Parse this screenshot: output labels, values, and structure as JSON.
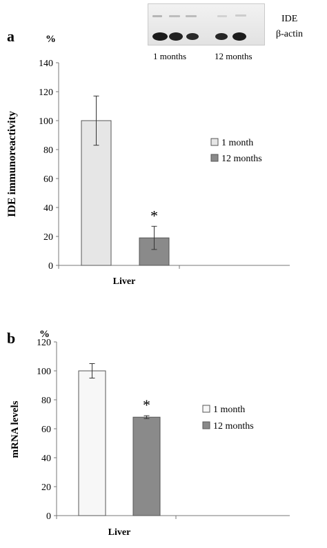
{
  "panel_a": {
    "letter": "a",
    "unit": "%"
  },
  "panel_b": {
    "letter": "b",
    "unit": "%"
  },
  "blot": {
    "labels": [
      "IDE",
      "β-actin"
    ],
    "lane_groups": [
      "1 months",
      "12 months"
    ]
  },
  "colors": {
    "one_month_a": "#e6e6e6",
    "twelve_months": "#8a8a8a",
    "one_month_b": "#f7f7f7"
  },
  "chart_data": [
    {
      "type": "bar",
      "title": "",
      "ylabel": "IDE immunoreactivity",
      "xlabel": "",
      "categories": [
        "Liver"
      ],
      "ylim": [
        0,
        140
      ],
      "yticks": [
        0,
        20,
        40,
        60,
        80,
        100,
        120,
        140
      ],
      "grid": false,
      "legend": "right",
      "series": [
        {
          "name": "1 month",
          "values": [
            100
          ],
          "error": [
            17
          ]
        },
        {
          "name": "12 months",
          "values": [
            19
          ],
          "error": [
            8
          ]
        }
      ],
      "annotations": [
        {
          "text": "*",
          "series": "12 months",
          "category": "Liver"
        }
      ]
    },
    {
      "type": "bar",
      "title": "",
      "ylabel": "mRNA levels",
      "xlabel": "",
      "categories": [
        "Liver"
      ],
      "ylim": [
        0,
        120
      ],
      "yticks": [
        0,
        20,
        40,
        60,
        80,
        100,
        120
      ],
      "grid": false,
      "legend": "right",
      "series": [
        {
          "name": "1 month",
          "values": [
            100
          ],
          "error": [
            5
          ]
        },
        {
          "name": "12 months",
          "values": [
            68
          ],
          "error": [
            1
          ]
        }
      ],
      "annotations": [
        {
          "text": "*",
          "series": "12 months",
          "category": "Liver"
        }
      ]
    }
  ]
}
